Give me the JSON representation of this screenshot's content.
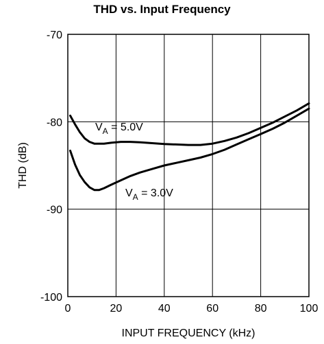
{
  "chart_data": {
    "type": "line",
    "title": "THD vs. Input Frequency",
    "xlabel": "INPUT FREQUENCY (kHz)",
    "ylabel": "THD (dB)",
    "xlim": [
      0,
      100
    ],
    "ylim": [
      -100,
      -70
    ],
    "xticks": [
      0,
      20,
      40,
      60,
      80,
      100
    ],
    "yticks": [
      -70,
      -80,
      -90,
      -100
    ],
    "xtick_labels": [
      "0",
      "20",
      "40",
      "60",
      "80",
      "100"
    ],
    "ytick_labels": [
      "-70",
      "-80",
      "-90",
      "-100"
    ],
    "grid": true,
    "annotations": [
      {
        "base": "V",
        "sub": "A",
        "rest": " = 5.0V"
      },
      {
        "base": "V",
        "sub": "A",
        "rest": " = 3.0V"
      }
    ],
    "series": [
      {
        "x": [
          1,
          3,
          5,
          7,
          9,
          11,
          13,
          15,
          18,
          22,
          26,
          30,
          35,
          40,
          45,
          50,
          55,
          60,
          65,
          70,
          75,
          80,
          85,
          90,
          95,
          100
        ],
        "y": [
          -79.3,
          -80.3,
          -81.2,
          -81.9,
          -82.3,
          -82.5,
          -82.5,
          -82.5,
          -82.4,
          -82.3,
          -82.3,
          -82.35,
          -82.45,
          -82.55,
          -82.6,
          -82.65,
          -82.65,
          -82.5,
          -82.2,
          -81.8,
          -81.3,
          -80.7,
          -80.1,
          -79.4,
          -78.7,
          -77.9
        ]
      },
      {
        "x": [
          1,
          3,
          5,
          7,
          9,
          11,
          13,
          15,
          18,
          22,
          26,
          30,
          35,
          40,
          45,
          50,
          55,
          60,
          65,
          70,
          75,
          80,
          85,
          90,
          95,
          100
        ],
        "y": [
          -83.3,
          -84.9,
          -86.1,
          -86.9,
          -87.5,
          -87.8,
          -87.8,
          -87.6,
          -87.2,
          -86.7,
          -86.2,
          -85.8,
          -85.4,
          -85.0,
          -84.7,
          -84.4,
          -84.1,
          -83.7,
          -83.2,
          -82.6,
          -82.0,
          -81.4,
          -80.8,
          -80.1,
          -79.3,
          -78.5
        ]
      }
    ]
  }
}
